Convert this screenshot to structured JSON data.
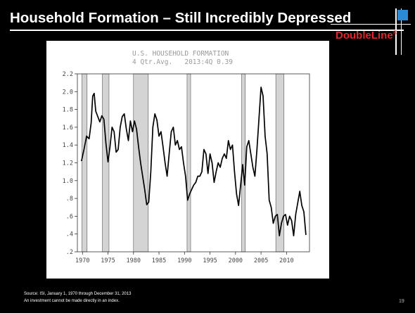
{
  "slide": {
    "title": "Household Formation – Still Incredibly Depressed",
    "logo_text": "DoubleLine",
    "logo_mark": "®",
    "footer_source": "Source: ISI, January 1, 1970 through December 31, 2013",
    "footer_disclaimer": "An investment cannot be made directly in an index.",
    "page_number": "19"
  },
  "colors": {
    "background": "#000000",
    "title": "#ffffff",
    "logo_red": "#e3262c",
    "logo_blue": "#2a8ad6",
    "line": "#000000",
    "recession_fill": "#d4d4d4"
  },
  "chart_data": {
    "type": "line",
    "title": "U.S. HOUSEHOLD FORMATION",
    "subtitle": "4 Qtr.Avg.   2013:4Q 0.39",
    "xlabel": "",
    "ylabel": "",
    "xlim": [
      1969.0,
      2014.5
    ],
    "ylim": [
      0.2,
      2.2
    ],
    "x_ticks": [
      1970,
      1975,
      1980,
      1985,
      1990,
      1995,
      2000,
      2005,
      2010
    ],
    "y_ticks": [
      0.2,
      0.4,
      0.6,
      0.8,
      1.0,
      1.2,
      1.4,
      1.6,
      1.8,
      2.0,
      2.2
    ],
    "y_tick_labels": [
      ".2",
      ".4",
      ".6",
      ".8",
      "1.0",
      "1.2",
      "1.4",
      "1.6",
      "1.8",
      "2.0",
      "2.2"
    ],
    "grid": false,
    "recession_bands": [
      [
        1969.9,
        1970.9
      ],
      [
        1973.9,
        1975.2
      ],
      [
        1980.0,
        1982.9
      ],
      [
        1990.5,
        1991.2
      ],
      [
        2001.2,
        2001.9
      ],
      [
        2007.9,
        2009.5
      ]
    ],
    "series": [
      {
        "values": [
          [
            1969.8,
            1.22
          ],
          [
            1970.3,
            1.35
          ],
          [
            1970.8,
            1.5
          ],
          [
            1971.3,
            1.47
          ],
          [
            1971.7,
            1.65
          ],
          [
            1972.0,
            1.95
          ],
          [
            1972.3,
            1.98
          ],
          [
            1972.6,
            1.78
          ],
          [
            1973.0,
            1.72
          ],
          [
            1973.4,
            1.66
          ],
          [
            1973.8,
            1.73
          ],
          [
            1974.2,
            1.69
          ],
          [
            1974.6,
            1.42
          ],
          [
            1975.0,
            1.21
          ],
          [
            1975.4,
            1.38
          ],
          [
            1975.8,
            1.6
          ],
          [
            1976.2,
            1.55
          ],
          [
            1976.6,
            1.32
          ],
          [
            1977.0,
            1.35
          ],
          [
            1977.4,
            1.6
          ],
          [
            1977.8,
            1.72
          ],
          [
            1978.2,
            1.75
          ],
          [
            1978.6,
            1.58
          ],
          [
            1979.0,
            1.45
          ],
          [
            1979.4,
            1.67
          ],
          [
            1979.8,
            1.55
          ],
          [
            1980.2,
            1.67
          ],
          [
            1980.6,
            1.58
          ],
          [
            1981.0,
            1.38
          ],
          [
            1981.4,
            1.2
          ],
          [
            1981.8,
            1.05
          ],
          [
            1982.2,
            0.9
          ],
          [
            1982.6,
            0.73
          ],
          [
            1983.0,
            0.76
          ],
          [
            1983.4,
            1.1
          ],
          [
            1983.8,
            1.6
          ],
          [
            1984.2,
            1.75
          ],
          [
            1984.6,
            1.68
          ],
          [
            1985.0,
            1.5
          ],
          [
            1985.4,
            1.55
          ],
          [
            1985.8,
            1.38
          ],
          [
            1986.2,
            1.2
          ],
          [
            1986.6,
            1.05
          ],
          [
            1987.0,
            1.3
          ],
          [
            1987.4,
            1.55
          ],
          [
            1987.8,
            1.6
          ],
          [
            1988.2,
            1.4
          ],
          [
            1988.6,
            1.45
          ],
          [
            1989.0,
            1.35
          ],
          [
            1989.4,
            1.38
          ],
          [
            1989.8,
            1.2
          ],
          [
            1990.2,
            1.05
          ],
          [
            1990.6,
            0.78
          ],
          [
            1991.0,
            0.85
          ],
          [
            1991.4,
            0.9
          ],
          [
            1991.8,
            0.95
          ],
          [
            1992.2,
            0.98
          ],
          [
            1992.6,
            1.05
          ],
          [
            1993.0,
            1.05
          ],
          [
            1993.4,
            1.1
          ],
          [
            1993.8,
            1.35
          ],
          [
            1994.2,
            1.3
          ],
          [
            1994.6,
            1.08
          ],
          [
            1995.0,
            1.3
          ],
          [
            1995.4,
            1.2
          ],
          [
            1995.8,
            0.98
          ],
          [
            1996.2,
            1.1
          ],
          [
            1996.6,
            1.2
          ],
          [
            1997.0,
            1.15
          ],
          [
            1997.4,
            1.25
          ],
          [
            1997.8,
            1.3
          ],
          [
            1998.2,
            1.25
          ],
          [
            1998.6,
            1.45
          ],
          [
            1999.0,
            1.35
          ],
          [
            1999.4,
            1.4
          ],
          [
            1999.8,
            1.1
          ],
          [
            2000.2,
            0.85
          ],
          [
            2000.6,
            0.72
          ],
          [
            2001.0,
            0.95
          ],
          [
            2001.4,
            1.18
          ],
          [
            2001.8,
            0.95
          ],
          [
            2002.2,
            1.38
          ],
          [
            2002.6,
            1.45
          ],
          [
            2003.0,
            1.3
          ],
          [
            2003.4,
            1.15
          ],
          [
            2003.8,
            1.05
          ],
          [
            2004.2,
            1.35
          ],
          [
            2004.6,
            1.7
          ],
          [
            2005.0,
            2.05
          ],
          [
            2005.4,
            1.95
          ],
          [
            2005.8,
            1.5
          ],
          [
            2006.2,
            1.3
          ],
          [
            2006.6,
            0.78
          ],
          [
            2007.0,
            0.7
          ],
          [
            2007.4,
            0.52
          ],
          [
            2007.8,
            0.6
          ],
          [
            2008.2,
            0.62
          ],
          [
            2008.6,
            0.38
          ],
          [
            2009.0,
            0.52
          ],
          [
            2009.4,
            0.6
          ],
          [
            2009.8,
            0.62
          ],
          [
            2010.2,
            0.5
          ],
          [
            2010.6,
            0.6
          ],
          [
            2011.0,
            0.55
          ],
          [
            2011.4,
            0.38
          ],
          [
            2011.8,
            0.62
          ],
          [
            2012.2,
            0.75
          ],
          [
            2012.6,
            0.88
          ],
          [
            2013.0,
            0.72
          ],
          [
            2013.4,
            0.65
          ],
          [
            2013.8,
            0.39
          ]
        ]
      }
    ]
  }
}
